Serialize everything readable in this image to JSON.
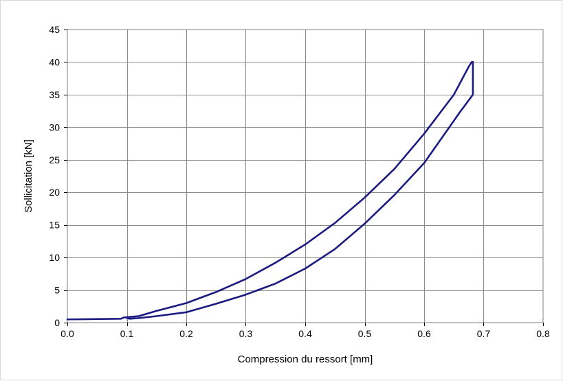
{
  "chart_data": {
    "type": "line",
    "xlabel": "Compression du ressort [mm]",
    "ylabel": "Sollicitation [kN]",
    "xlim": [
      0,
      0.8
    ],
    "ylim": [
      0,
      45
    ],
    "x_ticks": [
      "0.0",
      "0.1",
      "0.2",
      "0.3",
      "0.4",
      "0.5",
      "0.6",
      "0.7",
      "0.8"
    ],
    "y_ticks": [
      "0",
      "5",
      "10",
      "15",
      "20",
      "25",
      "30",
      "35",
      "40",
      "45"
    ],
    "grid": true,
    "legend": "none",
    "line_color": "#1a1a80",
    "series": [
      {
        "values_xy": [
          [
            0.0,
            0.5
          ],
          [
            0.09,
            0.6
          ],
          [
            0.095,
            0.8
          ],
          [
            0.12,
            1.0
          ],
          [
            0.15,
            1.8
          ],
          [
            0.2,
            3.0
          ],
          [
            0.25,
            4.7
          ],
          [
            0.3,
            6.7
          ],
          [
            0.35,
            9.2
          ],
          [
            0.4,
            12.0
          ],
          [
            0.45,
            15.3
          ],
          [
            0.5,
            19.2
          ],
          [
            0.55,
            23.6
          ],
          [
            0.6,
            29.0
          ],
          [
            0.65,
            35.0
          ],
          [
            0.675,
            39.3
          ],
          [
            0.68,
            40.0
          ],
          [
            0.682,
            40.0
          ]
        ]
      },
      {
        "values_xy": [
          [
            0.682,
            40.0
          ],
          [
            0.682,
            35.0
          ],
          [
            0.66,
            32.3
          ],
          [
            0.65,
            31.0
          ],
          [
            0.6,
            24.5
          ],
          [
            0.55,
            19.6
          ],
          [
            0.5,
            15.2
          ],
          [
            0.45,
            11.3
          ],
          [
            0.4,
            8.3
          ],
          [
            0.35,
            6.0
          ],
          [
            0.3,
            4.3
          ],
          [
            0.25,
            2.9
          ],
          [
            0.2,
            1.6
          ],
          [
            0.15,
            1.0
          ],
          [
            0.12,
            0.7
          ],
          [
            0.105,
            0.6
          ],
          [
            0.1,
            0.7
          ]
        ]
      }
    ]
  }
}
